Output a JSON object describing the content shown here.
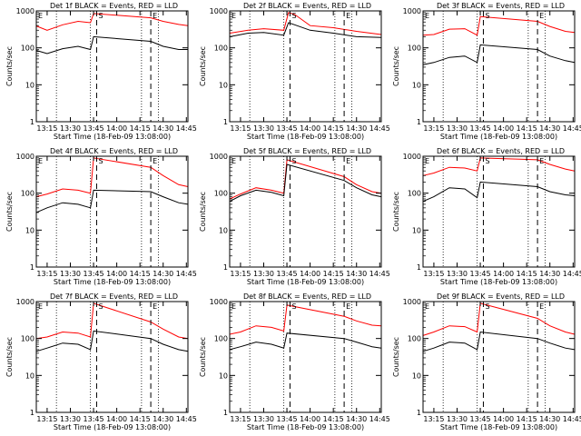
{
  "chart_data": [
    {
      "type": "line",
      "title": "Det 1f BLACK = Events, RED = LLD",
      "ylabel": "Counts/sec",
      "xlabel": "Start Time (18-Feb-09 13:08:00)",
      "yscale": "log",
      "ylim": [
        1,
        1000
      ],
      "xlim": [
        "13:08",
        "14:46"
      ],
      "xticks": [
        "13:15",
        "13:30",
        "13:45",
        "14:00",
        "14:15",
        "14:30",
        "14:45"
      ],
      "yticks": [
        "1",
        "10",
        "100",
        "1000"
      ],
      "markers": [
        {
          "label": "E",
          "time": "13:08",
          "style": "dashed"
        },
        {
          "label": "S",
          "time": "13:47",
          "style": "dashed"
        },
        {
          "label": "E",
          "time": "14:22",
          "style": "dashed"
        }
      ],
      "dotted_lines": [
        "13:21",
        "13:43",
        "14:16",
        "14:27"
      ],
      "series": [
        {
          "color": "#ff0000",
          "x": [
            "13:08",
            "13:15",
            "13:25",
            "13:35",
            "13:43",
            "13:45",
            "14:22",
            "14:30",
            "14:40",
            "14:46"
          ],
          "y": [
            390,
            300,
            420,
            520,
            480,
            850,
            650,
            520,
            430,
            400
          ]
        },
        {
          "color": "#000000",
          "x": [
            "13:08",
            "13:15",
            "13:25",
            "13:35",
            "13:43",
            "13:45",
            "14:22",
            "14:30",
            "14:40",
            "14:46"
          ],
          "y": [
            85,
            70,
            95,
            110,
            90,
            200,
            150,
            110,
            90,
            90
          ]
        }
      ]
    },
    {
      "type": "line",
      "title": "Det 2f BLACK = Events, RED = LLD",
      "ylabel": "Counts/sec",
      "xlabel": "Start Time (18-Feb-09 13:08:00)",
      "yscale": "log",
      "ylim": [
        1,
        1000
      ],
      "xlim": [
        "13:08",
        "14:46"
      ],
      "xticks": [
        "13:15",
        "13:30",
        "13:45",
        "14:00",
        "14:15",
        "14:30",
        "14:45"
      ],
      "yticks": [
        "1",
        "10",
        "100",
        "1000"
      ],
      "markers": [
        {
          "label": "E",
          "time": "13:08",
          "style": "dashed"
        },
        {
          "label": "S",
          "time": "13:47",
          "style": "dashed"
        },
        {
          "label": "E",
          "time": "14:22",
          "style": "dashed"
        }
      ],
      "dotted_lines": [
        "13:21",
        "13:43",
        "14:16",
        "14:27"
      ],
      "series": [
        {
          "color": "#ff0000",
          "x": [
            "13:08",
            "13:20",
            "13:30",
            "13:43",
            "13:46",
            "13:50",
            "14:00",
            "14:15",
            "14:30",
            "14:46"
          ],
          "y": [
            250,
            300,
            330,
            300,
            900,
            800,
            400,
            350,
            280,
            230
          ]
        },
        {
          "color": "#000000",
          "x": [
            "13:08",
            "13:20",
            "13:30",
            "13:43",
            "13:46",
            "13:50",
            "14:00",
            "14:15",
            "14:30",
            "14:46"
          ],
          "y": [
            200,
            250,
            260,
            220,
            480,
            420,
            300,
            250,
            200,
            190
          ]
        }
      ]
    },
    {
      "type": "line",
      "title": "Det 3f BLACK = Events, RED = LLD",
      "ylabel": "Counts/sec",
      "xlabel": "Start Time (18-Feb-09 13:08:00)",
      "yscale": "log",
      "ylim": [
        1,
        1000
      ],
      "xlim": [
        "13:08",
        "14:46"
      ],
      "xticks": [
        "13:15",
        "13:30",
        "13:45",
        "14:00",
        "14:15",
        "14:30",
        "14:45"
      ],
      "yticks": [
        "1",
        "10",
        "100",
        "1000"
      ],
      "markers": [
        {
          "label": "E",
          "time": "13:08",
          "style": "dashed"
        },
        {
          "label": "S",
          "time": "13:47",
          "style": "dashed"
        },
        {
          "label": "E",
          "time": "14:22",
          "style": "dashed"
        }
      ],
      "dotted_lines": [
        "13:21",
        "13:43",
        "14:16",
        "14:27"
      ],
      "series": [
        {
          "color": "#ff0000",
          "x": [
            "13:08",
            "13:15",
            "13:25",
            "13:35",
            "13:43",
            "13:45",
            "14:22",
            "14:30",
            "14:40",
            "14:46"
          ],
          "y": [
            220,
            230,
            320,
            330,
            220,
            700,
            520,
            380,
            280,
            260
          ]
        },
        {
          "color": "#000000",
          "x": [
            "13:08",
            "13:15",
            "13:25",
            "13:35",
            "13:43",
            "13:45",
            "14:22",
            "14:30",
            "14:40",
            "14:46"
          ],
          "y": [
            35,
            40,
            55,
            60,
            40,
            120,
            90,
            60,
            45,
            40
          ]
        }
      ]
    },
    {
      "type": "line",
      "title": "Det 4f BLACK = Events, RED = LLD",
      "ylabel": "Counts/sec",
      "xlabel": "Start Time (18-Feb-09 13:08:00)",
      "yscale": "log",
      "ylim": [
        1,
        1000
      ],
      "xlim": [
        "13:08",
        "14:46"
      ],
      "xticks": [
        "13:15",
        "13:30",
        "13:45",
        "14:00",
        "14:15",
        "14:30",
        "14:45"
      ],
      "yticks": [
        "1",
        "10",
        "100",
        "1000"
      ],
      "markers": [
        {
          "label": "E",
          "time": "13:08",
          "style": "dashed"
        },
        {
          "label": "S",
          "time": "13:47",
          "style": "dashed"
        },
        {
          "label": "E",
          "time": "14:22",
          "style": "dashed"
        }
      ],
      "dotted_lines": [
        "13:21",
        "13:43",
        "14:16",
        "14:27"
      ],
      "series": [
        {
          "color": "#ff0000",
          "x": [
            "13:08",
            "13:15",
            "13:25",
            "13:35",
            "13:43",
            "13:45",
            "14:22",
            "14:30",
            "14:40",
            "14:46"
          ],
          "y": [
            80,
            95,
            130,
            120,
            100,
            900,
            500,
            300,
            170,
            150
          ]
        },
        {
          "color": "#000000",
          "x": [
            "13:08",
            "13:15",
            "13:25",
            "13:35",
            "13:43",
            "13:45",
            "14:22",
            "14:30",
            "14:40",
            "14:46"
          ],
          "y": [
            30,
            40,
            55,
            50,
            40,
            120,
            110,
            80,
            55,
            50
          ]
        }
      ]
    },
    {
      "type": "line",
      "title": "Det 5f BLACK = Events, RED = LLD",
      "ylabel": "Counts/sec",
      "xlabel": "Start Time (18-Feb-09 13:08:00)",
      "yscale": "log",
      "ylim": [
        1,
        1000
      ],
      "xlim": [
        "13:08",
        "14:46"
      ],
      "xticks": [
        "13:15",
        "13:30",
        "13:45",
        "14:00",
        "14:15",
        "14:30",
        "14:45"
      ],
      "yticks": [
        "1",
        "10",
        "100",
        "1000"
      ],
      "markers": [
        {
          "label": "E",
          "time": "13:08",
          "style": "dashed"
        },
        {
          "label": "S",
          "time": "13:47",
          "style": "dashed"
        },
        {
          "label": "E",
          "time": "14:22",
          "style": "dashed"
        }
      ],
      "dotted_lines": [
        "13:21",
        "13:43",
        "14:16",
        "14:27"
      ],
      "series": [
        {
          "color": "#ff0000",
          "x": [
            "13:08",
            "13:15",
            "13:25",
            "13:35",
            "13:43",
            "13:45",
            "14:22",
            "14:30",
            "14:40",
            "14:46"
          ],
          "y": [
            70,
            95,
            140,
            120,
            100,
            800,
            280,
            170,
            110,
            100
          ]
        },
        {
          "color": "#000000",
          "x": [
            "13:08",
            "13:15",
            "13:25",
            "13:35",
            "13:43",
            "13:45",
            "14:22",
            "14:30",
            "14:40",
            "14:46"
          ],
          "y": [
            60,
            85,
            120,
            105,
            85,
            600,
            220,
            140,
            90,
            80
          ]
        }
      ]
    },
    {
      "type": "line",
      "title": "Det 6f BLACK = Events, RED = LLD",
      "ylabel": "Counts/sec",
      "xlabel": "Start Time (18-Feb-09 13:08:00)",
      "yscale": "log",
      "ylim": [
        1,
        1000
      ],
      "xlim": [
        "13:08",
        "14:46"
      ],
      "xticks": [
        "13:15",
        "13:30",
        "13:45",
        "14:00",
        "14:15",
        "14:30",
        "14:45"
      ],
      "yticks": [
        "1",
        "10",
        "100",
        "1000"
      ],
      "markers": [
        {
          "label": "E",
          "time": "13:08",
          "style": "dashed"
        },
        {
          "label": "S",
          "time": "13:47",
          "style": "dashed"
        },
        {
          "label": "E",
          "time": "14:22",
          "style": "dashed"
        }
      ],
      "dotted_lines": [
        "13:21",
        "13:43",
        "14:16",
        "14:27"
      ],
      "series": [
        {
          "color": "#ff0000",
          "x": [
            "13:08",
            "13:15",
            "13:25",
            "13:35",
            "13:43",
            "13:45",
            "14:22",
            "14:30",
            "14:40",
            "14:46"
          ],
          "y": [
            300,
            350,
            500,
            480,
            400,
            900,
            800,
            600,
            450,
            400
          ]
        },
        {
          "color": "#000000",
          "x": [
            "13:08",
            "13:15",
            "13:25",
            "13:35",
            "13:43",
            "13:45",
            "14:22",
            "14:30",
            "14:40",
            "14:46"
          ],
          "y": [
            60,
            80,
            140,
            130,
            75,
            200,
            150,
            110,
            90,
            85
          ]
        }
      ]
    },
    {
      "type": "line",
      "title": "Det 7f BLACK = Events, RED = LLD",
      "ylabel": "Counts/sec",
      "xlabel": "Start Time (18-Feb-09 13:08:00)",
      "yscale": "log",
      "ylim": [
        1,
        1000
      ],
      "xlim": [
        "13:08",
        "14:46"
      ],
      "xticks": [
        "13:15",
        "13:30",
        "13:45",
        "14:00",
        "14:15",
        "14:30",
        "14:45"
      ],
      "yticks": [
        "1",
        "10",
        "100",
        "1000"
      ],
      "markers": [
        {
          "label": "E",
          "time": "13:08",
          "style": "dashed"
        },
        {
          "label": "S",
          "time": "13:47",
          "style": "dashed"
        },
        {
          "label": "E",
          "time": "14:22",
          "style": "dashed"
        }
      ],
      "dotted_lines": [
        "13:21",
        "13:43",
        "14:16",
        "14:27"
      ],
      "series": [
        {
          "color": "#ff0000",
          "x": [
            "13:08",
            "13:15",
            "13:25",
            "13:35",
            "13:43",
            "13:45",
            "14:22",
            "14:30",
            "14:40",
            "14:46"
          ],
          "y": [
            100,
            110,
            150,
            140,
            110,
            900,
            280,
            180,
            110,
            100
          ]
        },
        {
          "color": "#000000",
          "x": [
            "13:08",
            "13:15",
            "13:25",
            "13:35",
            "13:43",
            "13:45",
            "14:22",
            "14:30",
            "14:40",
            "14:46"
          ],
          "y": [
            45,
            55,
            75,
            70,
            50,
            160,
            100,
            70,
            50,
            45
          ]
        }
      ]
    },
    {
      "type": "line",
      "title": "Det 8f BLACK = Events, RED = LLD",
      "ylabel": "Counts/sec",
      "xlabel": "Start Time (18-Feb-09 13:08:00)",
      "yscale": "log",
      "ylim": [
        1,
        1000
      ],
      "xlim": [
        "13:08",
        "14:46"
      ],
      "xticks": [
        "13:15",
        "13:30",
        "13:45",
        "14:00",
        "14:15",
        "14:30",
        "14:45"
      ],
      "yticks": [
        "1",
        "10",
        "100",
        "1000"
      ],
      "markers": [
        {
          "label": "E",
          "time": "13:08",
          "style": "dashed"
        },
        {
          "label": "S",
          "time": "13:47",
          "style": "dashed"
        },
        {
          "label": "E",
          "time": "14:22",
          "style": "dashed"
        }
      ],
      "dotted_lines": [
        "13:21",
        "13:43",
        "14:16",
        "14:27"
      ],
      "series": [
        {
          "color": "#ff0000",
          "x": [
            "13:08",
            "13:15",
            "13:25",
            "13:35",
            "13:43",
            "13:45",
            "14:22",
            "14:30",
            "14:40",
            "14:46"
          ],
          "y": [
            130,
            150,
            220,
            200,
            160,
            800,
            400,
            300,
            230,
            220
          ]
        },
        {
          "color": "#000000",
          "x": [
            "13:08",
            "13:15",
            "13:25",
            "13:35",
            "13:43",
            "13:45",
            "14:22",
            "14:30",
            "14:40",
            "14:46"
          ],
          "y": [
            50,
            60,
            80,
            70,
            55,
            140,
            100,
            80,
            60,
            55
          ]
        }
      ]
    },
    {
      "type": "line",
      "title": "Det 9f BLACK = Events, RED = LLD",
      "ylabel": "Counts/sec",
      "xlabel": "Start Time (18-Feb-09 13:08:00)",
      "yscale": "log",
      "ylim": [
        1,
        1000
      ],
      "xlim": [
        "13:08",
        "14:46"
      ],
      "xticks": [
        "13:15",
        "13:30",
        "13:45",
        "14:00",
        "14:15",
        "14:30",
        "14:45"
      ],
      "yticks": [
        "1",
        "10",
        "100",
        "1000"
      ],
      "markers": [
        {
          "label": "E",
          "time": "13:08",
          "style": "dashed"
        },
        {
          "label": "S",
          "time": "13:47",
          "style": "dashed"
        },
        {
          "label": "E",
          "time": "14:22",
          "style": "dashed"
        }
      ],
      "dotted_lines": [
        "13:21",
        "13:43",
        "14:16",
        "14:27"
      ],
      "series": [
        {
          "color": "#ff0000",
          "x": [
            "13:08",
            "13:15",
            "13:25",
            "13:35",
            "13:43",
            "13:45",
            "14:22",
            "14:30",
            "14:40",
            "14:46"
          ],
          "y": [
            120,
            150,
            220,
            210,
            150,
            900,
            350,
            220,
            150,
            130
          ]
        },
        {
          "color": "#000000",
          "x": [
            "13:08",
            "13:15",
            "13:25",
            "13:35",
            "13:43",
            "13:45",
            "14:22",
            "14:30",
            "14:40",
            "14:46"
          ],
          "y": [
            45,
            55,
            80,
            75,
            50,
            150,
            100,
            75,
            55,
            50
          ]
        }
      ]
    }
  ]
}
